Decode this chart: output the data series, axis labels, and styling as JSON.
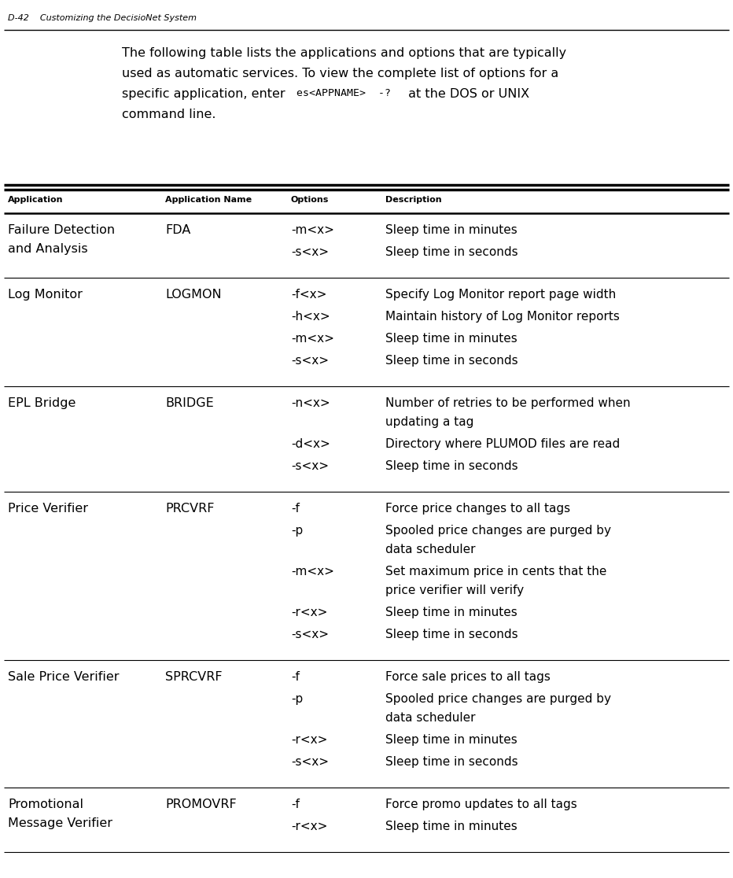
{
  "page_header": "D-42    Customizing the DecisioNet System",
  "col_headers": [
    "Application",
    "Application Name",
    "Options",
    "Description"
  ],
  "bg_color": "#ffffff",
  "rows": [
    {
      "app": "Failure Detection\nand Analysis",
      "name": "FDA",
      "options": [
        "-m<x>",
        "-s<x>"
      ],
      "descriptions": [
        "Sleep time in minutes",
        "Sleep time in seconds"
      ]
    },
    {
      "app": "Log Monitor",
      "name": "LOGMON",
      "options": [
        "-f<x>",
        "-h<x>",
        "-m<x>",
        "-s<x>"
      ],
      "descriptions": [
        "Specify Log Monitor report page width",
        "Maintain history of Log Monitor reports",
        "Sleep time in minutes",
        "Sleep time in seconds"
      ]
    },
    {
      "app": "EPL Bridge",
      "name": "BRIDGE",
      "options": [
        "-n<x>",
        "-d<x>",
        "-s<x>"
      ],
      "descriptions": [
        "Number of retries to be performed when\nupdating a tag",
        "Directory where PLUMOD files are read",
        "Sleep time in seconds"
      ]
    },
    {
      "app": "Price Verifier",
      "name": "PRCVRF",
      "options": [
        "-f",
        "-p",
        "-m<x>",
        "-r<x>",
        "-s<x>"
      ],
      "descriptions": [
        "Force price changes to all tags",
        "Spooled price changes are purged by\ndata scheduler",
        "Set maximum price in cents that the\nprice verifier will verify",
        "Sleep time in minutes",
        "Sleep time in seconds"
      ]
    },
    {
      "app": "Sale Price Verifier",
      "name": "SPRCVRF",
      "options": [
        "-f",
        "-p",
        "-r<x>",
        "-s<x>"
      ],
      "descriptions": [
        "Force sale prices to all tags",
        "Spooled price changes are purged by\ndata scheduler",
        "Sleep time in minutes",
        "Sleep time in seconds"
      ]
    },
    {
      "app": "Promotional\nMessage Verifier",
      "name": "PROMOVRF",
      "options": [
        "-f",
        "-r<x>"
      ],
      "descriptions": [
        "Force promo updates to all tags",
        "Sleep time in minutes"
      ]
    }
  ]
}
